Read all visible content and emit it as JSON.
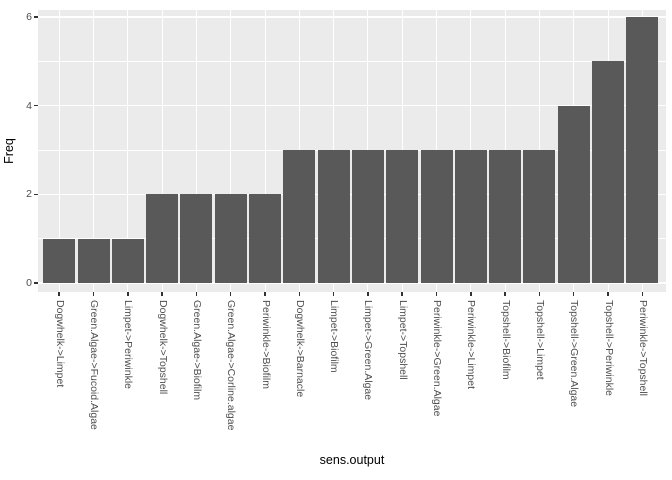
{
  "chart_data": {
    "type": "bar",
    "title": "",
    "xlabel": "sens.output",
    "ylabel": "Freq",
    "categories": [
      "Dogwhelk->Limpet",
      "Green.Algae->Fucoid.Algae",
      "Limpet->Periwinkle",
      "Dogwhelk->Topshell",
      "Green.Algae->Biofilm",
      "Green.Algae->Corline.algae",
      "Periwinkle->Biofilm",
      "Dogwhelk->Barnacle",
      "Limpet->Biofilm",
      "Limpet->Green.Algae",
      "Limpet->Topshell",
      "Periwinkle->Green.Algae",
      "Periwinkle->Limpet",
      "Topshell->Biofilm",
      "Topshell->Limpet",
      "Topshell->Green.Algae",
      "Topshell->Periwinkle",
      "Periwinkle->Topshell"
    ],
    "values": [
      1,
      1,
      1,
      2,
      2,
      2,
      2,
      3,
      3,
      3,
      3,
      3,
      3,
      3,
      3,
      4,
      5,
      6
    ],
    "ylim": [
      0,
      6
    ],
    "yticks": [
      0,
      2,
      4,
      6
    ],
    "minor_yticks": [
      1,
      3,
      5
    ],
    "grid": true,
    "legend": "none",
    "colors": {
      "bar": "#595959",
      "panel_background": "#ebebeb",
      "gridline": "#ffffff",
      "tick_label": "#4d4d4d",
      "tick_mark": "#333333",
      "axis_title": "#000000",
      "figure_background": "#ffffff"
    }
  }
}
